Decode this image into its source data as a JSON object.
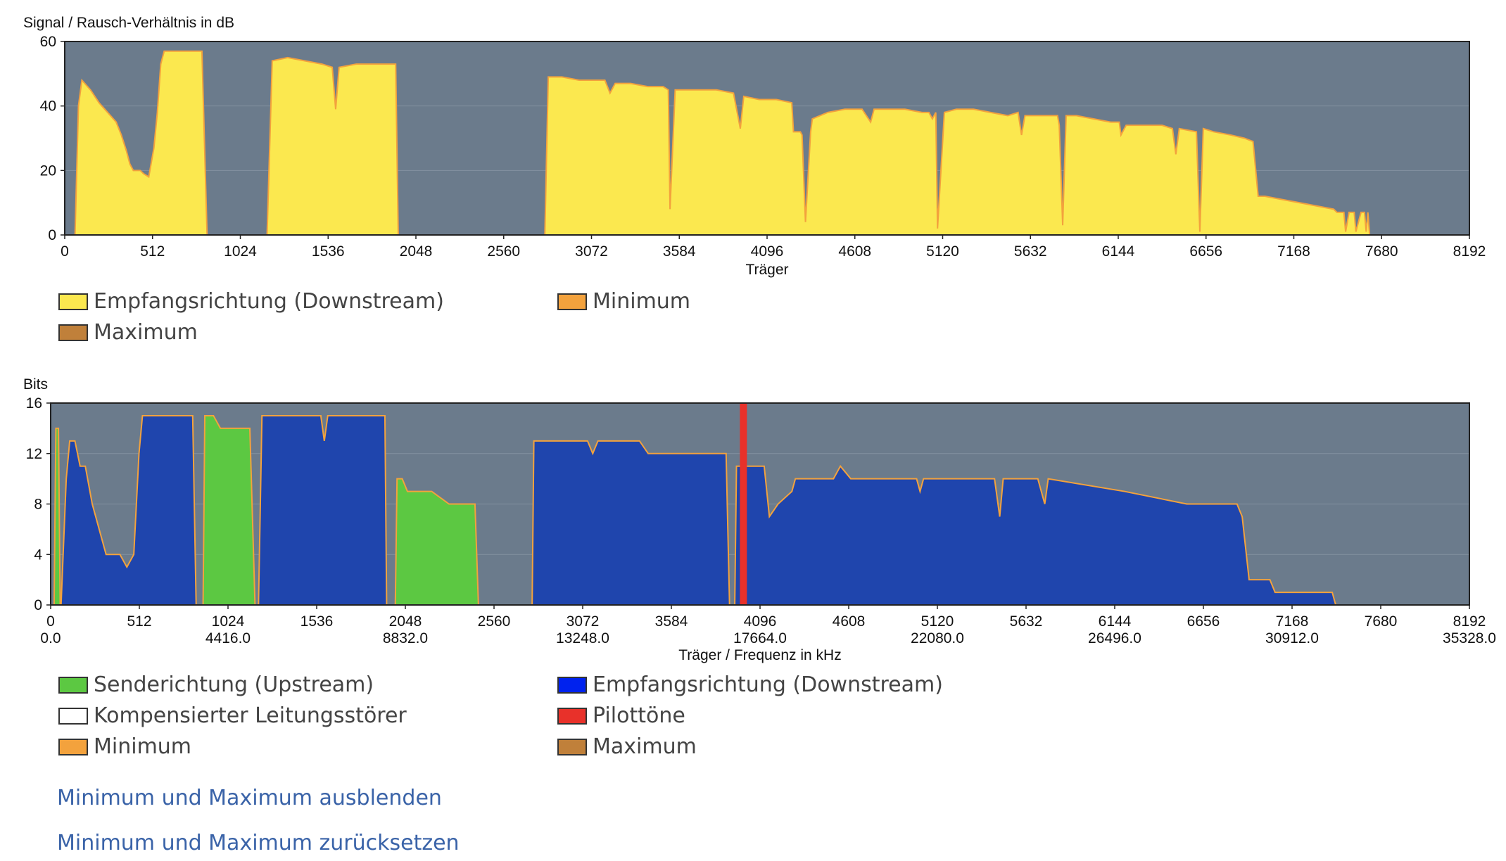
{
  "chart_data": [
    {
      "type": "area",
      "title": "Signal / Rausch-Verhältnis in dB",
      "xlabel": "Träger",
      "ylabel": "Signal / Rausch-Verhältnis in dB",
      "xlim": [
        0,
        8192
      ],
      "ylim": [
        0,
        60
      ],
      "x_ticks": [
        "0",
        "512",
        "1024",
        "1536",
        "2048",
        "2560",
        "3072",
        "3584",
        "4096",
        "4608",
        "5120",
        "5632",
        "6144",
        "6656",
        "7168",
        "7680",
        "8192"
      ],
      "y_ticks": [
        "0",
        "20",
        "40",
        "60"
      ],
      "background": "#6b7b8c",
      "series": [
        {
          "name": "Empfangsrichtung (Downstream)",
          "color": "#fbe84f",
          "points": [
            [
              60,
              0
            ],
            [
              80,
              40
            ],
            [
              100,
              48
            ],
            [
              150,
              45
            ],
            [
              200,
              41
            ],
            [
              250,
              38
            ],
            [
              300,
              35
            ],
            [
              330,
              31
            ],
            [
              360,
              26
            ],
            [
              380,
              22
            ],
            [
              400,
              20
            ],
            [
              440,
              20
            ],
            [
              460,
              19
            ],
            [
              490,
              18
            ],
            [
              520,
              27
            ],
            [
              540,
              38
            ],
            [
              560,
              53
            ],
            [
              580,
              57
            ],
            [
              620,
              57
            ],
            [
              700,
              57
            ],
            [
              760,
              57
            ],
            [
              800,
              57
            ],
            [
              830,
              0
            ],
            [
              1180,
              0
            ],
            [
              1210,
              54
            ],
            [
              1300,
              55
            ],
            [
              1400,
              54
            ],
            [
              1500,
              53
            ],
            [
              1560,
              52
            ],
            [
              1580,
              39
            ],
            [
              1600,
              52
            ],
            [
              1700,
              53
            ],
            [
              1800,
              53
            ],
            [
              1930,
              53
            ],
            [
              1945,
              0
            ],
            [
              2800,
              0
            ],
            [
              2820,
              49
            ],
            [
              2900,
              49
            ],
            [
              3000,
              48
            ],
            [
              3100,
              48
            ],
            [
              3150,
              48
            ],
            [
              3180,
              44
            ],
            [
              3210,
              47
            ],
            [
              3300,
              47
            ],
            [
              3400,
              46
            ],
            [
              3490,
              46
            ],
            [
              3520,
              45
            ],
            [
              3530,
              8
            ],
            [
              3560,
              45
            ],
            [
              3700,
              45
            ],
            [
              3800,
              45
            ],
            [
              3900,
              44
            ],
            [
              3940,
              33
            ],
            [
              3960,
              43
            ],
            [
              4050,
              42
            ],
            [
              4150,
              42
            ],
            [
              4240,
              41
            ],
            [
              4250,
              32
            ],
            [
              4290,
              32
            ],
            [
              4300,
              31
            ],
            [
              4320,
              4
            ],
            [
              4350,
              32
            ],
            [
              4360,
              36
            ],
            [
              4450,
              38
            ],
            [
              4550,
              39
            ],
            [
              4600,
              39
            ],
            [
              4650,
              39
            ],
            [
              4700,
              35
            ],
            [
              4720,
              39
            ],
            [
              4800,
              39
            ],
            [
              4900,
              39
            ],
            [
              5000,
              38
            ],
            [
              5040,
              38
            ],
            [
              5060,
              36
            ],
            [
              5080,
              38
            ],
            [
              5090,
              2
            ],
            [
              5130,
              38
            ],
            [
              5200,
              39
            ],
            [
              5300,
              39
            ],
            [
              5400,
              38
            ],
            [
              5500,
              37
            ],
            [
              5560,
              38
            ],
            [
              5580,
              31
            ],
            [
              5600,
              37
            ],
            [
              5700,
              37
            ],
            [
              5790,
              37
            ],
            [
              5800,
              34
            ],
            [
              5820,
              3
            ],
            [
              5840,
              37
            ],
            [
              5900,
              37
            ],
            [
              6000,
              36
            ],
            [
              6100,
              35
            ],
            [
              6150,
              35
            ],
            [
              6160,
              31
            ],
            [
              6190,
              34
            ],
            [
              6300,
              34
            ],
            [
              6400,
              34
            ],
            [
              6460,
              33
            ],
            [
              6480,
              25
            ],
            [
              6500,
              33
            ],
            [
              6600,
              32
            ],
            [
              6620,
              1
            ],
            [
              6640,
              33
            ],
            [
              6700,
              32
            ],
            [
              6800,
              31
            ],
            [
              6880,
              30
            ],
            [
              6930,
              29
            ],
            [
              6960,
              12
            ],
            [
              7000,
              12
            ],
            [
              7100,
              11
            ],
            [
              7200,
              10
            ],
            [
              7300,
              9
            ],
            [
              7400,
              8
            ],
            [
              7420,
              7
            ],
            [
              7460,
              7
            ],
            [
              7470,
              1
            ],
            [
              7490,
              7
            ],
            [
              7520,
              7
            ],
            [
              7530,
              1
            ],
            [
              7560,
              7
            ],
            [
              7580,
              7
            ],
            [
              7590,
              1
            ],
            [
              7600,
              7
            ],
            [
              7610,
              0
            ]
          ]
        },
        {
          "name": "Minimum",
          "color": "#f3a23d",
          "points": []
        },
        {
          "name": "Maximum",
          "color": "#c0803a",
          "points": []
        }
      ]
    },
    {
      "type": "area",
      "title": "Bits",
      "xlabel": "Träger / Frequenz in kHz",
      "ylabel": "Bits",
      "xlim": [
        0,
        8192
      ],
      "ylim": [
        0,
        16
      ],
      "x_ticks": [
        "0",
        "512",
        "1024",
        "1536",
        "2048",
        "2560",
        "3072",
        "3584",
        "4096",
        "4608",
        "5120",
        "5632",
        "6144",
        "6656",
        "7168",
        "7680",
        "8192"
      ],
      "x_ticks_khz": [
        "0.0",
        "4416.0",
        "8832.0",
        "13248.0",
        "17664.0",
        "22080.0",
        "26496.0",
        "30912.0",
        "35328.0"
      ],
      "y_ticks": [
        "0",
        "4",
        "8",
        "12",
        "16"
      ],
      "background": "#6b7b8c",
      "series": [
        {
          "name": "Senderichtung (Upstream)",
          "color": "#5cc842",
          "segments": [
            [
              [
                20,
                0
              ],
              [
                30,
                14
              ],
              [
                45,
                14
              ],
              [
                55,
                0
              ]
            ],
            [
              [
                880,
                0
              ],
              [
                890,
                15
              ],
              [
                940,
                15
              ],
              [
                980,
                14
              ],
              [
                1150,
                14
              ],
              [
                1180,
                0
              ]
            ],
            [
              [
                1990,
                0
              ],
              [
                2000,
                10
              ],
              [
                2030,
                10
              ],
              [
                2060,
                9
              ],
              [
                2200,
                9
              ],
              [
                2300,
                8
              ],
              [
                2450,
                8
              ],
              [
                2470,
                0
              ]
            ]
          ]
        },
        {
          "name": "Empfangsrichtung (Downstream)",
          "color": "#1f45ad",
          "segments": [
            [
              [
                60,
                0
              ],
              [
                90,
                10
              ],
              [
                110,
                13
              ],
              [
                140,
                13
              ],
              [
                170,
                11
              ],
              [
                200,
                11
              ],
              [
                240,
                8
              ],
              [
                280,
                6
              ],
              [
                320,
                4
              ],
              [
                400,
                4
              ],
              [
                440,
                3
              ],
              [
                480,
                4
              ],
              [
                510,
                12
              ],
              [
                530,
                15
              ],
              [
                820,
                15
              ],
              [
                840,
                0
              ]
            ],
            [
              [
                1200,
                0
              ],
              [
                1220,
                15
              ],
              [
                1560,
                15
              ],
              [
                1580,
                13
              ],
              [
                1600,
                15
              ],
              [
                1930,
                15
              ],
              [
                1940,
                0
              ]
            ],
            [
              [
                2780,
                0
              ],
              [
                2790,
                13
              ],
              [
                3100,
                13
              ],
              [
                3130,
                12
              ],
              [
                3160,
                13
              ],
              [
                3400,
                13
              ],
              [
                3450,
                12
              ],
              [
                3900,
                12
              ],
              [
                3920,
                0
              ]
            ],
            [
              [
                3950,
                0
              ],
              [
                3960,
                11
              ],
              [
                4120,
                11
              ],
              [
                4150,
                7
              ],
              [
                4200,
                8
              ],
              [
                4280,
                9
              ],
              [
                4300,
                10
              ],
              [
                4520,
                10
              ],
              [
                4560,
                11
              ],
              [
                4620,
                10
              ],
              [
                5000,
                10
              ],
              [
                5020,
                9
              ],
              [
                5040,
                10
              ],
              [
                5450,
                10
              ],
              [
                5480,
                7
              ],
              [
                5500,
                10
              ],
              [
                5700,
                10
              ],
              [
                5740,
                8
              ],
              [
                5760,
                10
              ],
              [
                6200,
                9
              ],
              [
                6560,
                8
              ],
              [
                6850,
                8
              ],
              [
                6880,
                7
              ],
              [
                6920,
                2
              ],
              [
                7040,
                2
              ],
              [
                7070,
                1
              ],
              [
                7400,
                1
              ],
              [
                7420,
                0
              ]
            ]
          ]
        },
        {
          "name": "Kompensierter Leitungsstörer",
          "color": "#ffffff",
          "segments": []
        },
        {
          "name": "Pilottöne",
          "color": "#e8312a",
          "carriers": [
            4000
          ]
        },
        {
          "name": "Minimum",
          "color": "#f3a23d",
          "segments": []
        },
        {
          "name": "Maximum",
          "color": "#c0803a",
          "segments": []
        }
      ]
    }
  ],
  "snr_legend": [
    {
      "label": "Empfangsrichtung (Downstream)",
      "color": "#fbe84f"
    },
    {
      "label": "Minimum",
      "color": "#f3a23d"
    },
    {
      "label": "Maximum",
      "color": "#c0803a"
    }
  ],
  "bits_legend": [
    {
      "label": "Senderichtung (Upstream)",
      "color": "#5cc842"
    },
    {
      "label": "Empfangsrichtung (Downstream)",
      "color": "#0022ee"
    },
    {
      "label": "Kompensierter Leitungsstörer",
      "color": "#ffffff"
    },
    {
      "label": "Pilottöne",
      "color": "#e8312a"
    },
    {
      "label": "Minimum",
      "color": "#f3a23d"
    },
    {
      "label": "Maximum",
      "color": "#c0803a"
    }
  ],
  "actions": {
    "hide_minmax": "Minimum und Maximum ausblenden",
    "reset_minmax": "Minimum und Maximum zurücksetzen"
  }
}
